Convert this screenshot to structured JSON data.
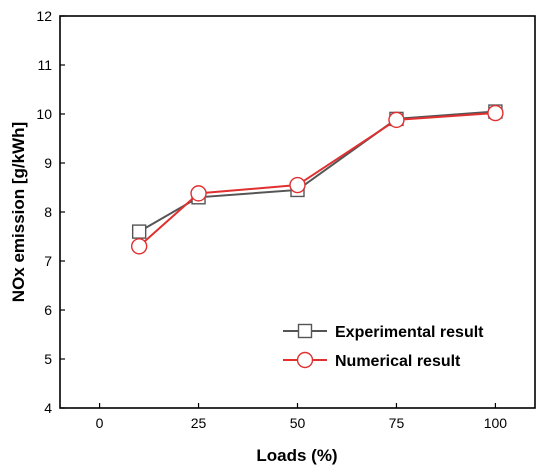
{
  "chart_data": {
    "type": "line",
    "title": "",
    "xlabel": "Loads (%)",
    "ylabel": "NOx emission [g/kWh]",
    "xlim": [
      -10,
      110
    ],
    "ylim": [
      4,
      12
    ],
    "xticks": [
      0,
      25,
      50,
      75,
      100
    ],
    "yticks": [
      4,
      5,
      6,
      7,
      8,
      9,
      10,
      11,
      12
    ],
    "grid": false,
    "legend_position": "bottom-right",
    "series": [
      {
        "name": "Experimental result",
        "marker": "square",
        "color": "#555555",
        "x": [
          10,
          25,
          50,
          75,
          100
        ],
        "y": [
          7.6,
          8.3,
          8.45,
          9.9,
          10.05
        ]
      },
      {
        "name": "Numerical result",
        "marker": "circle",
        "color": "#e03030",
        "x": [
          10,
          25,
          50,
          75,
          100
        ],
        "y": [
          7.3,
          8.38,
          8.55,
          9.88,
          10.02
        ]
      }
    ]
  }
}
